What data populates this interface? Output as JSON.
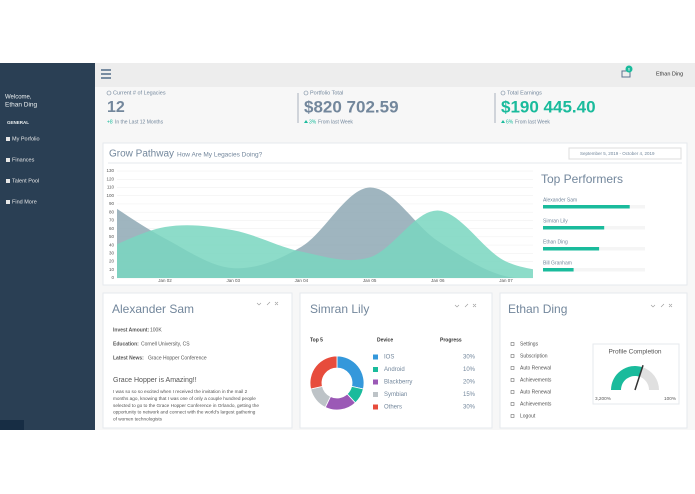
{
  "sidebar": {
    "welcome": "Welcome,",
    "user": "Ethan Ding",
    "section": "GENERAL",
    "menu": [
      "My Porfolio",
      "Finances",
      "Talent Pool",
      "Find More"
    ]
  },
  "navbar": {
    "badge": "6",
    "user": "Ethan Ding"
  },
  "stats": [
    {
      "label": "Current # of Legacies",
      "value": "12",
      "change": "+8",
      "note": "In the Last 12 Months"
    },
    {
      "label": "Portfolio Total",
      "value": "$820 702.59",
      "change": "3%",
      "note": "From last Week"
    },
    {
      "label": "Total Earnings",
      "value": "$190 445.40",
      "change": "6%",
      "note": "From last Week"
    }
  ],
  "grow_pathway": {
    "type": "area",
    "title": "Grow Pathway",
    "subtitle": "How Are My Legacies Doing?",
    "date_range": "September 5, 2019 - October 4, 2019",
    "categories": [
      null,
      "Jan 02",
      "Jan 03",
      "Jan 04",
      "Jan 05",
      "Jan 06",
      "Jan 07",
      null
    ],
    "series": [
      {
        "color": "#8ea8b4",
        "values": [
          100,
          48,
          12,
          38,
          110,
          45,
          2,
          5
        ]
      },
      {
        "color": "#79d6bf",
        "values": [
          30,
          62,
          58,
          32,
          25,
          82,
          20,
          5
        ]
      }
    ],
    "ylim": [
      0,
      130
    ],
    "yticks": [
      0,
      10,
      20,
      30,
      40,
      50,
      60,
      70,
      80,
      90,
      100,
      110,
      120,
      130
    ],
    "grid": true
  },
  "top_performers": {
    "title": "Top Performers",
    "color": "#1abb9c",
    "xlim": [
      0,
      100
    ],
    "names": [
      "Alexander Sam",
      "Simran Lily",
      "Ethan Ding",
      "Bill Granham"
    ],
    "values": [
      85,
      60,
      55,
      30
    ]
  },
  "card1": {
    "name": "Alexander Sam",
    "fields": [
      {
        "label": "Invest Amount:",
        "value": "100K"
      },
      {
        "label": "Education:",
        "value": "Cornell University, CS"
      },
      {
        "label": "Latest News:",
        "value": "Grace Hopper Conference"
      }
    ],
    "headline": "Grace Hopper is Amazing!!",
    "lines": [
      "I was so so so excited when I received the invitation in the mail 2",
      "months ago, knowing that I was one of only a couple hundred people",
      "selected to go to the Grace Hopper Conference in Orlando, getting the",
      "opportunity to network and connect with the world's largest gathering",
      "of women technologists"
    ]
  },
  "card2": {
    "name": "Simran Lily",
    "headers": [
      "Top 5",
      "Device",
      "Progress"
    ],
    "chart": {
      "type": "donut",
      "categories": [
        "IOS",
        "Android",
        "Blackberry",
        "Symbian",
        "Others"
      ],
      "values": [
        30,
        10,
        20,
        15,
        30
      ],
      "value_labels": [
        "30%",
        "10%",
        "20%",
        "15%",
        "30%"
      ],
      "colors": [
        "#3498db",
        "#1abb9c",
        "#9b59b6",
        "#bdc3c7",
        "#e74c3c"
      ]
    }
  },
  "card3": {
    "name": "Ethan Ding",
    "menu": [
      "Settings",
      "Subscription",
      "Auto Renewal",
      "Achievements",
      "Auto Renewal",
      "Achievements",
      "Logout"
    ],
    "gauge": {
      "title": "Profile Completion",
      "value": 60,
      "min_label": "3,200%",
      "max_label": "100%",
      "lim": [
        0,
        100
      ],
      "color": "#1abb9c"
    }
  }
}
